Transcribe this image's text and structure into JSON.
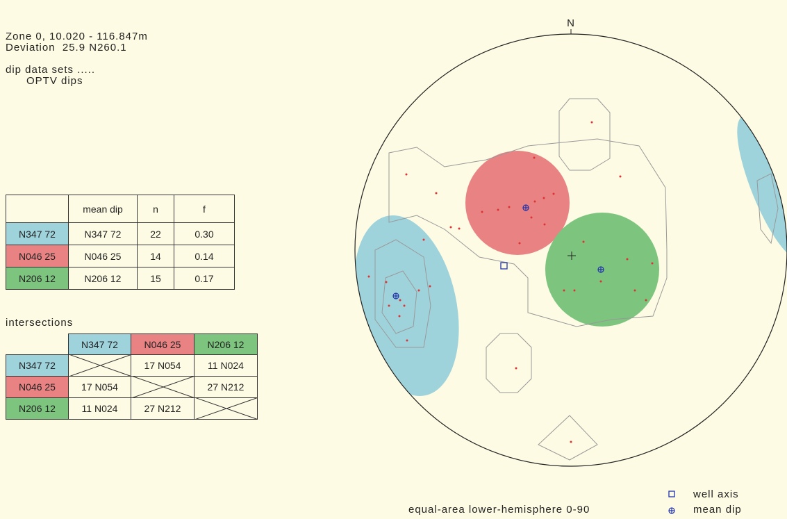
{
  "header": {
    "lines": [
      "Zone 0, 10.020 - 116.847m",
      "Deviation  25.9 N260.1",
      "dip data sets .....",
      "OPTV dips"
    ]
  },
  "sets_table": {
    "columns": [
      "mean dip",
      "n",
      "f"
    ],
    "rows": [
      {
        "label": "N347 72",
        "color": "#9fd3dc",
        "cells": [
          "N347 72",
          "22",
          "0.30"
        ]
      },
      {
        "label": "N046 25",
        "color": "#e98383",
        "cells": [
          "N046 25",
          "14",
          "0.14"
        ]
      },
      {
        "label": "N206 12",
        "color": "#7dc47f",
        "cells": [
          "N206 12",
          "15",
          "0.17"
        ]
      }
    ]
  },
  "intersections": {
    "title": "intersections",
    "columns": [
      "N347 72",
      "N046 25",
      "N206 12"
    ],
    "rows": [
      {
        "label": "N347 72",
        "cells": [
          null,
          "17 N054",
          "11 N024"
        ]
      },
      {
        "label": "N046 25",
        "cells": [
          "17 N054",
          null,
          "27 N212"
        ]
      },
      {
        "label": "N206 12",
        "cells": [
          "11 N024",
          "27 N212",
          null
        ]
      }
    ]
  },
  "stereonet": {
    "north": "N",
    "footer": "equal-area   lower-hemisphere   0-90",
    "legend": [
      "well axis",
      "mean dip"
    ]
  }
}
